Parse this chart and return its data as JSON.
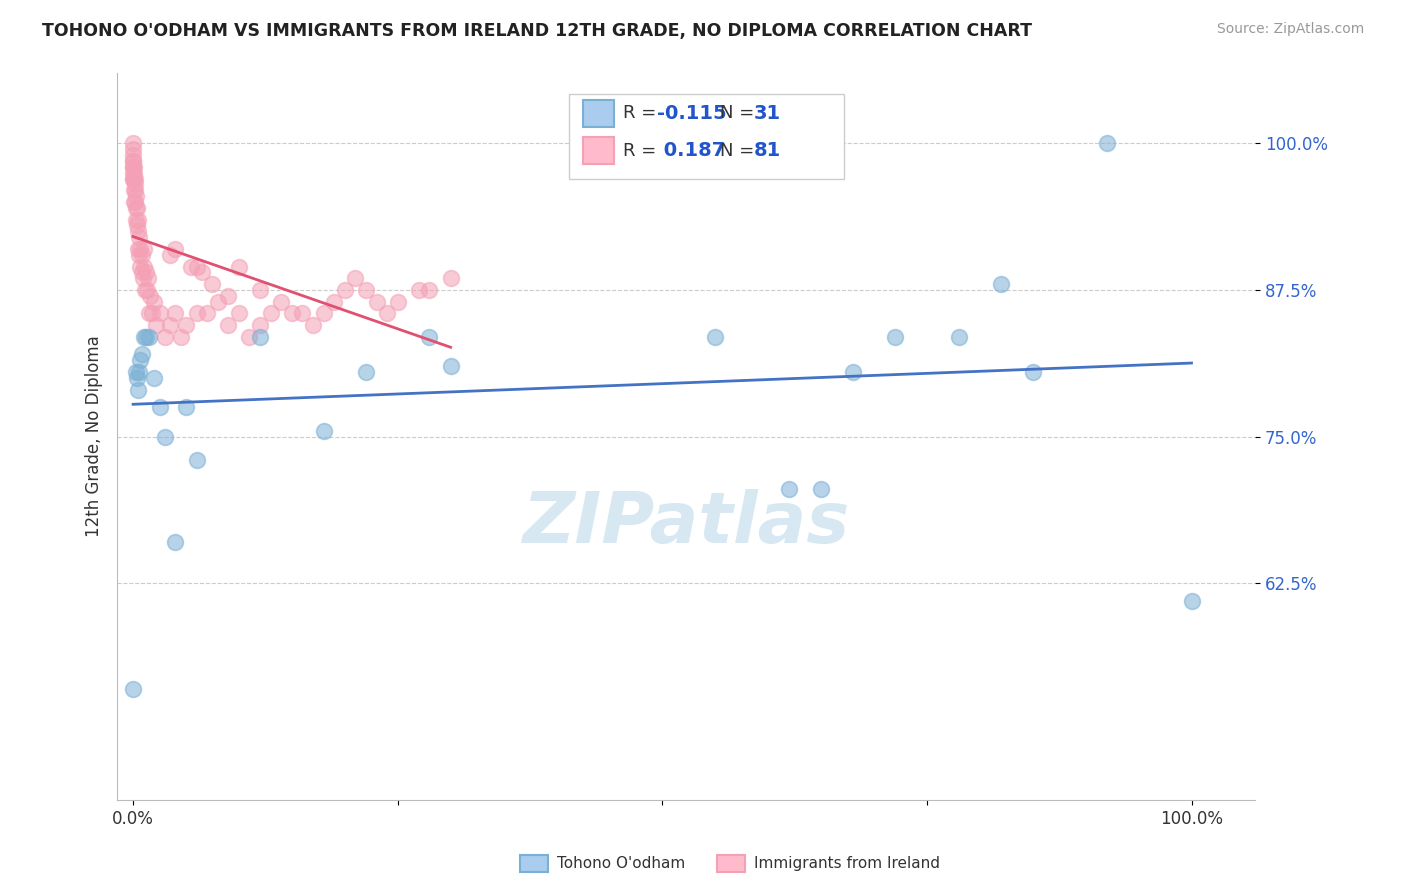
{
  "title": "TOHONO O'ODHAM VS IMMIGRANTS FROM IRELAND 12TH GRADE, NO DIPLOMA CORRELATION CHART",
  "source": "Source: ZipAtlas.com",
  "ylabel": "12th Grade, No Diploma",
  "legend_label1": "Tohono O'odham",
  "legend_label2": "Immigrants from Ireland",
  "r1": "-0.115",
  "n1": "31",
  "r2": "0.187",
  "n2": "81",
  "blue_color": "#7BAFD4",
  "pink_color": "#F4A0B5",
  "trendline_blue": "#4472C4",
  "trendline_pink": "#E05070",
  "watermark_color": "#D0E4F0",
  "blue_points_x": [
    0.0,
    0.003,
    0.004,
    0.005,
    0.006,
    0.007,
    0.008,
    0.01,
    0.012,
    0.015,
    0.02,
    0.025,
    0.05,
    0.12,
    0.22,
    0.28,
    0.55,
    0.62,
    0.65,
    0.68,
    0.72,
    0.78,
    0.82,
    0.85,
    0.92,
    1.0,
    0.03,
    0.04,
    0.06,
    0.18,
    0.3
  ],
  "blue_points_y": [
    0.535,
    0.805,
    0.8,
    0.79,
    0.805,
    0.815,
    0.82,
    0.835,
    0.835,
    0.835,
    0.8,
    0.775,
    0.775,
    0.835,
    0.805,
    0.835,
    0.835,
    0.705,
    0.705,
    0.805,
    0.835,
    0.835,
    0.88,
    0.805,
    1.0,
    0.61,
    0.75,
    0.66,
    0.73,
    0.755,
    0.81
  ],
  "pink_points_x": [
    0.0,
    0.0,
    0.0,
    0.0,
    0.0,
    0.0,
    0.0,
    0.0,
    0.0,
    0.0,
    0.001,
    0.001,
    0.001,
    0.001,
    0.001,
    0.002,
    0.002,
    0.002,
    0.002,
    0.003,
    0.003,
    0.003,
    0.004,
    0.004,
    0.005,
    0.005,
    0.005,
    0.006,
    0.006,
    0.007,
    0.007,
    0.008,
    0.008,
    0.009,
    0.01,
    0.01,
    0.011,
    0.012,
    0.013,
    0.014,
    0.015,
    0.016,
    0.018,
    0.02,
    0.022,
    0.025,
    0.03,
    0.035,
    0.04,
    0.045,
    0.05,
    0.06,
    0.07,
    0.08,
    0.09,
    0.1,
    0.11,
    0.12,
    0.13,
    0.14,
    0.15,
    0.16,
    0.17,
    0.18,
    0.19,
    0.2,
    0.21,
    0.22,
    0.23,
    0.24,
    0.25,
    0.27,
    0.28,
    0.3,
    0.06,
    0.1,
    0.12,
    0.035,
    0.04,
    0.055,
    0.065,
    0.075,
    0.09
  ],
  "pink_points_y": [
    0.97,
    0.98,
    0.975,
    0.97,
    0.98,
    0.985,
    0.99,
    0.995,
    1.0,
    0.985,
    0.95,
    0.96,
    0.97,
    0.975,
    0.98,
    0.95,
    0.96,
    0.965,
    0.97,
    0.935,
    0.945,
    0.955,
    0.93,
    0.945,
    0.91,
    0.925,
    0.935,
    0.905,
    0.92,
    0.895,
    0.91,
    0.89,
    0.905,
    0.885,
    0.895,
    0.91,
    0.875,
    0.89,
    0.875,
    0.885,
    0.855,
    0.87,
    0.855,
    0.865,
    0.845,
    0.855,
    0.835,
    0.845,
    0.855,
    0.835,
    0.845,
    0.855,
    0.855,
    0.865,
    0.845,
    0.855,
    0.835,
    0.845,
    0.855,
    0.865,
    0.855,
    0.855,
    0.845,
    0.855,
    0.865,
    0.875,
    0.885,
    0.875,
    0.865,
    0.855,
    0.865,
    0.875,
    0.875,
    0.885,
    0.895,
    0.895,
    0.875,
    0.905,
    0.91,
    0.895,
    0.89,
    0.88,
    0.87
  ],
  "ytick_vals": [
    0.625,
    0.75,
    0.875,
    1.0
  ],
  "ytick_labels": [
    "62.5%",
    "75.0%",
    "87.5%",
    "100.0%"
  ],
  "xtick_vals": [
    0.0,
    0.25,
    0.5,
    0.75,
    1.0
  ],
  "xtick_labels": [
    "0.0%",
    "",
    "",
    "",
    "100.0%"
  ],
  "ylim": [
    0.44,
    1.06
  ],
  "xlim": [
    -0.015,
    1.06
  ],
  "grid_color": "#CCCCCC"
}
